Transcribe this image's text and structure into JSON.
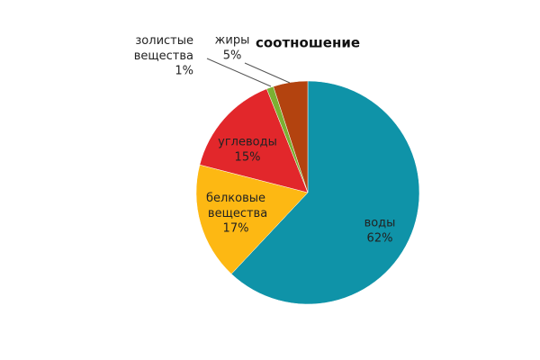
{
  "chart_data": {
    "type": "pie",
    "title": "соотношение",
    "categories": [
      "воды",
      "белковые вещества",
      "углеводы",
      "золистые вещества",
      "жиры"
    ],
    "values": [
      62,
      17,
      15,
      1,
      5
    ],
    "value_labels": [
      "62%",
      "17%",
      "15%",
      "1%",
      "5%"
    ],
    "colors": [
      "#0f93a8",
      "#fdb813",
      "#e2272b",
      "#7bb032",
      "#b3430f"
    ]
  }
}
